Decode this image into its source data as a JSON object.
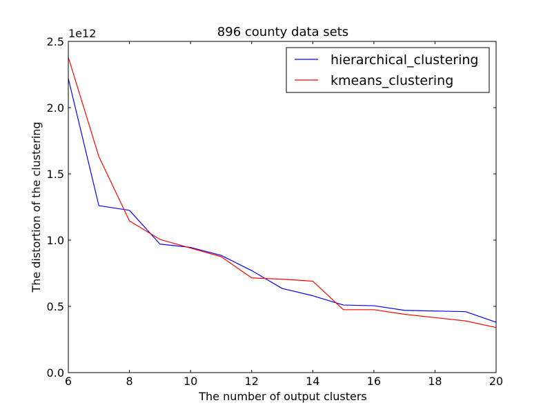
{
  "chart_data": {
    "type": "line",
    "title": "896 county data sets",
    "xlabel": "The number of output clusters",
    "ylabel": "The distortion of the clustering",
    "y_offset_label": "1e12",
    "y_multiplier": 1000000000000.0,
    "xlim": [
      6,
      20
    ],
    "ylim": [
      0.0,
      2.5
    ],
    "xticks": [
      6,
      8,
      10,
      12,
      14,
      16,
      18,
      20
    ],
    "xtick_labels": [
      "6",
      "8",
      "10",
      "12",
      "14",
      "16",
      "18",
      "20"
    ],
    "yticks": [
      0.0,
      0.5,
      1.0,
      1.5,
      2.0,
      2.5
    ],
    "ytick_labels": [
      "0.0",
      "0.5",
      "1.0",
      "1.5",
      "2.0",
      "2.5"
    ],
    "grid": false,
    "legend_position": "top-right",
    "x": [
      6,
      7,
      8,
      9,
      10,
      11,
      12,
      13,
      14,
      15,
      16,
      17,
      18,
      19,
      20
    ],
    "series": [
      {
        "name": "hierarchical_clustering",
        "color": "#0000ff",
        "values": [
          2.22,
          1.26,
          1.225,
          0.97,
          0.945,
          0.885,
          0.77,
          0.635,
          0.58,
          0.51,
          0.505,
          0.47,
          0.465,
          0.46,
          0.38
        ]
      },
      {
        "name": "kmeans_clustering",
        "color": "#ff0000",
        "values": [
          2.38,
          1.63,
          1.145,
          1.005,
          0.94,
          0.875,
          0.715,
          0.705,
          0.69,
          0.475,
          0.475,
          0.44,
          0.415,
          0.39,
          0.34
        ]
      }
    ]
  }
}
